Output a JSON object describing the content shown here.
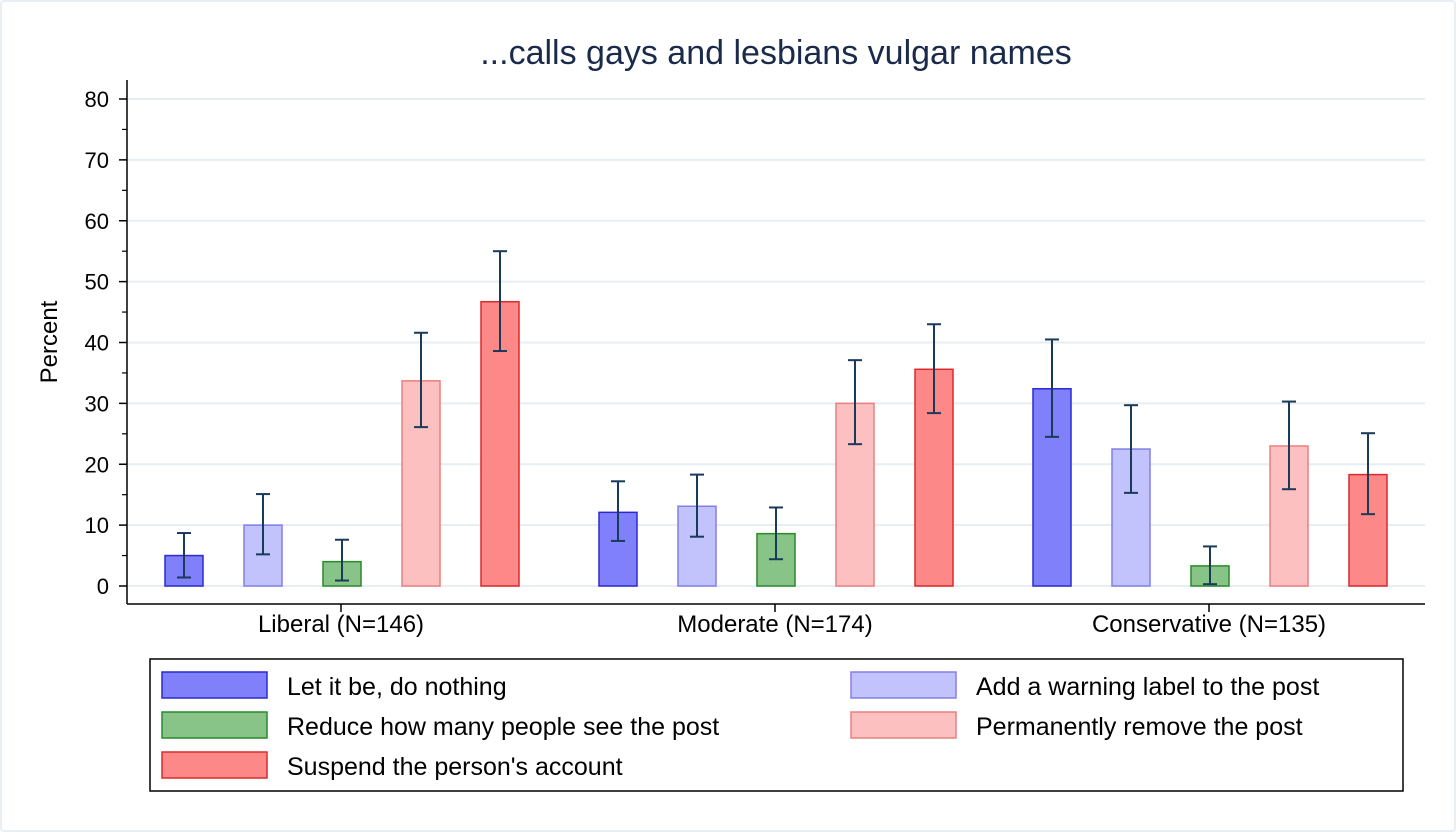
{
  "chart_data": {
    "type": "bar",
    "title": "...calls gays and lesbians vulgar names",
    "ylabel": "Percent",
    "xlabel": "",
    "ylim": [
      0,
      80
    ],
    "yticks": [
      0,
      10,
      20,
      30,
      40,
      50,
      60,
      70,
      80
    ],
    "grid": true,
    "legend_position": "bottom",
    "categories": [
      "Liberal (N=146)",
      "Moderate (N=174)",
      "Conservative (N=135)"
    ],
    "series": [
      {
        "name": "Let it be, do nothing",
        "color": "#8080fa",
        "edge": "#2a2ad0",
        "values": [
          5.0,
          12.1,
          32.4
        ],
        "ci_low": [
          1.4,
          7.4,
          24.5
        ],
        "ci_high": [
          8.7,
          17.2,
          40.5
        ]
      },
      {
        "name": "Add a warning label to the post",
        "color": "#c2c2fc",
        "edge": "#8080e8",
        "values": [
          10.0,
          13.1,
          22.5
        ],
        "ci_low": [
          5.2,
          8.1,
          15.3
        ],
        "ci_high": [
          15.1,
          18.3,
          29.7
        ]
      },
      {
        "name": "Reduce how many people see the post",
        "color": "#88c488",
        "edge": "#2a8a2a",
        "values": [
          4.0,
          8.6,
          3.3
        ],
        "ci_low": [
          0.9,
          4.4,
          0.3
        ],
        "ci_high": [
          7.6,
          12.9,
          6.5
        ]
      },
      {
        "name": "Permanently remove the post",
        "color": "#fcc0c0",
        "edge": "#e88080",
        "values": [
          33.7,
          30.0,
          23.0
        ],
        "ci_low": [
          26.1,
          23.3,
          15.9
        ],
        "ci_high": [
          41.6,
          37.1,
          30.3
        ]
      },
      {
        "name": "Suspend the person's account",
        "color": "#fc8888",
        "edge": "#dc2a2a",
        "values": [
          46.7,
          35.6,
          18.3
        ],
        "ci_low": [
          38.6,
          28.4,
          11.8
        ],
        "ci_high": [
          55.0,
          43.0,
          25.1
        ]
      }
    ]
  }
}
